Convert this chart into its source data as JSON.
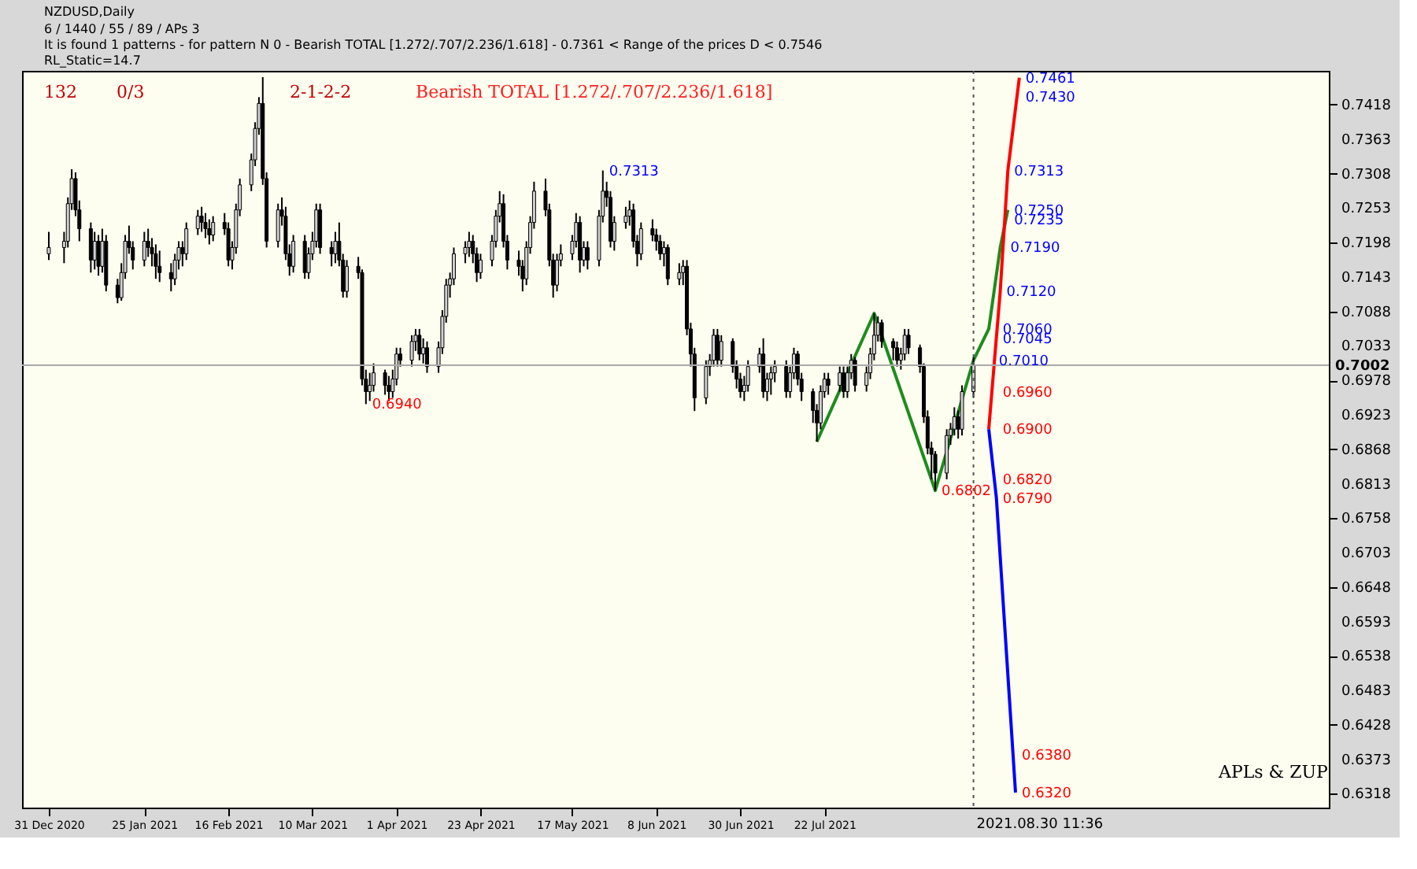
{
  "chart_data": {
    "type": "candlestick",
    "title": "NZDUSD,Daily",
    "x": [
      "2020-12-31",
      "2021-01-04",
      "2021-01-05",
      "2021-01-06",
      "2021-01-07",
      "2021-01-08",
      "2021-01-11",
      "2021-01-12",
      "2021-01-13",
      "2021-01-14",
      "2021-01-15",
      "2021-01-18",
      "2021-01-19",
      "2021-01-20",
      "2021-01-21",
      "2021-01-22",
      "2021-01-25",
      "2021-01-26",
      "2021-01-27",
      "2021-01-28",
      "2021-01-29",
      "2021-02-01",
      "2021-02-02",
      "2021-02-03",
      "2021-02-04",
      "2021-02-05",
      "2021-02-08",
      "2021-02-09",
      "2021-02-10",
      "2021-02-11",
      "2021-02-12",
      "2021-02-15",
      "2021-02-16",
      "2021-02-17",
      "2021-02-18",
      "2021-02-19",
      "2021-02-22",
      "2021-02-23",
      "2021-02-24",
      "2021-02-25",
      "2021-02-26",
      "2021-03-01",
      "2021-03-02",
      "2021-03-03",
      "2021-03-04",
      "2021-03-05",
      "2021-03-08",
      "2021-03-09",
      "2021-03-10",
      "2021-03-11",
      "2021-03-12",
      "2021-03-15",
      "2021-03-16",
      "2021-03-17",
      "2021-03-18",
      "2021-03-19",
      "2021-03-22",
      "2021-03-23",
      "2021-03-24",
      "2021-03-25",
      "2021-03-26",
      "2021-03-29",
      "2021-03-30",
      "2021-03-31",
      "2021-04-01",
      "2021-04-02",
      "2021-04-05",
      "2021-04-06",
      "2021-04-07",
      "2021-04-08",
      "2021-04-09",
      "2021-04-12",
      "2021-04-13",
      "2021-04-14",
      "2021-04-15",
      "2021-04-16",
      "2021-04-19",
      "2021-04-20",
      "2021-04-21",
      "2021-04-22",
      "2021-04-23",
      "2021-04-26",
      "2021-04-27",
      "2021-04-28",
      "2021-04-29",
      "2021-04-30",
      "2021-05-03",
      "2021-05-04",
      "2021-05-05",
      "2021-05-06",
      "2021-05-07",
      "2021-05-10",
      "2021-05-11",
      "2021-05-12",
      "2021-05-13",
      "2021-05-14",
      "2021-05-17",
      "2021-05-18",
      "2021-05-19",
      "2021-05-20",
      "2021-05-21",
      "2021-05-24",
      "2021-05-25",
      "2021-05-26",
      "2021-05-27",
      "2021-05-28",
      "2021-05-31",
      "2021-06-01",
      "2021-06-02",
      "2021-06-03",
      "2021-06-04",
      "2021-06-07",
      "2021-06-08",
      "2021-06-09",
      "2021-06-10",
      "2021-06-11",
      "2021-06-14",
      "2021-06-15",
      "2021-06-16",
      "2021-06-17",
      "2021-06-18",
      "2021-06-21",
      "2021-06-22",
      "2021-06-23",
      "2021-06-24",
      "2021-06-25",
      "2021-06-28",
      "2021-06-29",
      "2021-06-30",
      "2021-07-01",
      "2021-07-02",
      "2021-07-05",
      "2021-07-06",
      "2021-07-07",
      "2021-07-08",
      "2021-07-09",
      "2021-07-12",
      "2021-07-13",
      "2021-07-14",
      "2021-07-15",
      "2021-07-16",
      "2021-07-19",
      "2021-07-20",
      "2021-07-21",
      "2021-07-22",
      "2021-07-23",
      "2021-07-26",
      "2021-07-27",
      "2021-07-28",
      "2021-07-29",
      "2021-07-30",
      "2021-08-02",
      "2021-08-03",
      "2021-08-04",
      "2021-08-05",
      "2021-08-06",
      "2021-08-09",
      "2021-08-10",
      "2021-08-11",
      "2021-08-12",
      "2021-08-13",
      "2021-08-16",
      "2021-08-17",
      "2021-08-18",
      "2021-08-19",
      "2021-08-20",
      "2021-08-23",
      "2021-08-24",
      "2021-08-25",
      "2021-08-26",
      "2021-08-27",
      "2021-08-30"
    ],
    "ohlc": [
      [
        0.718,
        0.7215,
        0.717,
        0.719
      ],
      [
        0.719,
        0.7215,
        0.7165,
        0.72
      ],
      [
        0.72,
        0.727,
        0.719,
        0.726
      ],
      [
        0.726,
        0.7315,
        0.725,
        0.73
      ],
      [
        0.73,
        0.731,
        0.724,
        0.725
      ],
      [
        0.725,
        0.7265,
        0.72,
        0.722
      ],
      [
        0.722,
        0.723,
        0.715,
        0.717
      ],
      [
        0.717,
        0.7215,
        0.7155,
        0.72
      ],
      [
        0.72,
        0.721,
        0.7145,
        0.716
      ],
      [
        0.716,
        0.722,
        0.715,
        0.72
      ],
      [
        0.72,
        0.721,
        0.712,
        0.713
      ],
      [
        0.713,
        0.714,
        0.7101,
        0.711
      ],
      [
        0.711,
        0.7165,
        0.7105,
        0.715
      ],
      [
        0.715,
        0.721,
        0.714,
        0.72
      ],
      [
        0.72,
        0.7225,
        0.718,
        0.719
      ],
      [
        0.719,
        0.72,
        0.7155,
        0.717
      ],
      [
        0.717,
        0.7215,
        0.716,
        0.72
      ],
      [
        0.72,
        0.722,
        0.7175,
        0.719
      ],
      [
        0.719,
        0.7205,
        0.716,
        0.718
      ],
      [
        0.718,
        0.7195,
        0.714,
        0.716
      ],
      [
        0.716,
        0.7185,
        0.7135,
        0.715
      ],
      [
        0.715,
        0.7165,
        0.712,
        0.714
      ],
      [
        0.714,
        0.718,
        0.713,
        0.717
      ],
      [
        0.717,
        0.72,
        0.7155,
        0.719
      ],
      [
        0.719,
        0.72,
        0.716,
        0.718
      ],
      [
        0.718,
        0.723,
        0.717,
        0.722
      ],
      [
        0.722,
        0.725,
        0.721,
        0.724
      ],
      [
        0.724,
        0.7255,
        0.7215,
        0.723
      ],
      [
        0.723,
        0.7245,
        0.7205,
        0.722
      ],
      [
        0.722,
        0.7235,
        0.7195,
        0.721
      ],
      [
        0.721,
        0.724,
        0.72,
        0.723
      ],
      [
        0.723,
        0.7245,
        0.721,
        0.722
      ],
      [
        0.722,
        0.723,
        0.716,
        0.717
      ],
      [
        0.717,
        0.72,
        0.7155,
        0.719
      ],
      [
        0.719,
        0.726,
        0.718,
        0.725
      ],
      [
        0.725,
        0.73,
        0.724,
        0.729
      ],
      [
        0.729,
        0.734,
        0.728,
        0.733
      ],
      [
        0.733,
        0.739,
        0.732,
        0.738
      ],
      [
        0.738,
        0.743,
        0.737,
        0.742
      ],
      [
        0.742,
        0.7462,
        0.729,
        0.73
      ],
      [
        0.73,
        0.731,
        0.719,
        0.72
      ],
      [
        0.72,
        0.726,
        0.719,
        0.725
      ],
      [
        0.725,
        0.727,
        0.7225,
        0.724
      ],
      [
        0.724,
        0.7255,
        0.717,
        0.718
      ],
      [
        0.718,
        0.7195,
        0.7145,
        0.716
      ],
      [
        0.716,
        0.721,
        0.715,
        0.72
      ],
      [
        0.72,
        0.721,
        0.714,
        0.715
      ],
      [
        0.715,
        0.719,
        0.714,
        0.718
      ],
      [
        0.718,
        0.7215,
        0.717,
        0.72
      ],
      [
        0.72,
        0.726,
        0.719,
        0.725
      ],
      [
        0.725,
        0.726,
        0.718,
        0.719
      ],
      [
        0.719,
        0.72,
        0.716,
        0.718
      ],
      [
        0.718,
        0.7215,
        0.7165,
        0.72
      ],
      [
        0.72,
        0.723,
        0.716,
        0.717
      ],
      [
        0.717,
        0.718,
        0.711,
        0.712
      ],
      [
        0.712,
        0.717,
        0.711,
        0.716
      ],
      [
        0.716,
        0.7175,
        0.714,
        0.715
      ],
      [
        0.715,
        0.7155,
        0.697,
        0.698
      ],
      [
        0.698,
        0.6995,
        0.694,
        0.696
      ],
      [
        0.696,
        0.699,
        0.6945,
        0.697
      ],
      [
        0.697,
        0.7005,
        0.696,
        0.699
      ],
      [
        0.699,
        0.6995,
        0.6955,
        0.697
      ],
      [
        0.697,
        0.6985,
        0.6945,
        0.696
      ],
      [
        0.696,
        0.6995,
        0.695,
        0.698
      ],
      [
        0.698,
        0.703,
        0.697,
        0.702
      ],
      [
        0.702,
        0.703,
        0.7,
        0.701
      ],
      [
        0.701,
        0.705,
        0.7,
        0.704
      ],
      [
        0.704,
        0.706,
        0.7025,
        0.705
      ],
      [
        0.705,
        0.706,
        0.701,
        0.702
      ],
      [
        0.702,
        0.7045,
        0.7005,
        0.703
      ],
      [
        0.703,
        0.704,
        0.699,
        0.7
      ],
      [
        0.7,
        0.704,
        0.699,
        0.703
      ],
      [
        0.703,
        0.709,
        0.702,
        0.708
      ],
      [
        0.708,
        0.714,
        0.707,
        0.713
      ],
      [
        0.713,
        0.715,
        0.711,
        0.714
      ],
      [
        0.714,
        0.719,
        0.713,
        0.718
      ],
      [
        0.718,
        0.72,
        0.7165,
        0.719
      ],
      [
        0.719,
        0.7215,
        0.7175,
        0.72
      ],
      [
        0.72,
        0.721,
        0.7165,
        0.718
      ],
      [
        0.718,
        0.719,
        0.7135,
        0.715
      ],
      [
        0.715,
        0.718,
        0.714,
        0.717
      ],
      [
        0.717,
        0.721,
        0.716,
        0.72
      ],
      [
        0.72,
        0.725,
        0.719,
        0.724
      ],
      [
        0.724,
        0.728,
        0.723,
        0.726
      ],
      [
        0.726,
        0.7275,
        0.719,
        0.72
      ],
      [
        0.72,
        0.721,
        0.7155,
        0.717
      ],
      [
        0.717,
        0.7185,
        0.7145,
        0.716
      ],
      [
        0.716,
        0.717,
        0.712,
        0.714
      ],
      [
        0.714,
        0.72,
        0.713,
        0.719
      ],
      [
        0.719,
        0.724,
        0.718,
        0.723
      ],
      [
        0.723,
        0.7295,
        0.722,
        0.728
      ],
      [
        0.728,
        0.73,
        0.724,
        0.725
      ],
      [
        0.725,
        0.726,
        0.716,
        0.717
      ],
      [
        0.717,
        0.718,
        0.711,
        0.713
      ],
      [
        0.713,
        0.718,
        0.712,
        0.717
      ],
      [
        0.717,
        0.7195,
        0.716,
        0.718
      ],
      [
        0.718,
        0.721,
        0.717,
        0.72
      ],
      [
        0.72,
        0.7245,
        0.719,
        0.723
      ],
      [
        0.723,
        0.724,
        0.715,
        0.717
      ],
      [
        0.717,
        0.72,
        0.716,
        0.719
      ],
      [
        0.719,
        0.72,
        0.7155,
        0.717
      ],
      [
        0.717,
        0.725,
        0.716,
        0.724
      ],
      [
        0.724,
        0.7313,
        0.723,
        0.728
      ],
      [
        0.728,
        0.7295,
        0.7255,
        0.727
      ],
      [
        0.727,
        0.728,
        0.719,
        0.72
      ],
      [
        0.72,
        0.724,
        0.7185,
        0.723
      ],
      [
        0.723,
        0.7255,
        0.722,
        0.724
      ],
      [
        0.724,
        0.7265,
        0.7225,
        0.725
      ],
      [
        0.725,
        0.726,
        0.719,
        0.72
      ],
      [
        0.72,
        0.721,
        0.716,
        0.718
      ],
      [
        0.718,
        0.723,
        0.717,
        0.722
      ],
      [
        0.722,
        0.7235,
        0.72,
        0.721
      ],
      [
        0.721,
        0.722,
        0.7185,
        0.72
      ],
      [
        0.72,
        0.721,
        0.717,
        0.718
      ],
      [
        0.718,
        0.72,
        0.716,
        0.719
      ],
      [
        0.719,
        0.7195,
        0.713,
        0.714
      ],
      [
        0.714,
        0.7165,
        0.713,
        0.715
      ],
      [
        0.715,
        0.717,
        0.713,
        0.716
      ],
      [
        0.716,
        0.717,
        0.705,
        0.706
      ],
      [
        0.706,
        0.707,
        0.7,
        0.702
      ],
      [
        0.702,
        0.703,
        0.6929,
        0.695
      ],
      [
        0.695,
        0.701,
        0.694,
        0.7
      ],
      [
        0.7,
        0.702,
        0.6985,
        0.701
      ],
      [
        0.701,
        0.706,
        0.7,
        0.705
      ],
      [
        0.705,
        0.706,
        0.7,
        0.701
      ],
      [
        0.701,
        0.705,
        0.7,
        0.704
      ],
      [
        0.704,
        0.7045,
        0.699,
        0.7
      ],
      [
        0.7,
        0.701,
        0.6965,
        0.698
      ],
      [
        0.698,
        0.699,
        0.695,
        0.696
      ],
      [
        0.696,
        0.6985,
        0.6945,
        0.697
      ],
      [
        0.697,
        0.701,
        0.696,
        0.7
      ],
      [
        0.7,
        0.703,
        0.699,
        0.702
      ],
      [
        0.702,
        0.7045,
        0.695,
        0.696
      ],
      [
        0.696,
        0.699,
        0.6945,
        0.698
      ],
      [
        0.698,
        0.7,
        0.6955,
        0.699
      ],
      [
        0.699,
        0.701,
        0.6975,
        0.7
      ],
      [
        0.7,
        0.701,
        0.695,
        0.696
      ],
      [
        0.696,
        0.7,
        0.695,
        0.699
      ],
      [
        0.699,
        0.703,
        0.698,
        0.702
      ],
      [
        0.702,
        0.7025,
        0.697,
        0.698
      ],
      [
        0.698,
        0.699,
        0.6945,
        0.696
      ],
      [
        0.696,
        0.6965,
        0.691,
        0.693
      ],
      [
        0.693,
        0.694,
        0.688,
        0.691
      ],
      [
        0.691,
        0.697,
        0.69,
        0.696
      ],
      [
        0.696,
        0.699,
        0.695,
        0.698
      ],
      [
        0.698,
        0.699,
        0.6955,
        0.697
      ],
      [
        0.697,
        0.7,
        0.696,
        0.699
      ],
      [
        0.699,
        0.7,
        0.695,
        0.696
      ],
      [
        0.696,
        0.7,
        0.695,
        0.699
      ],
      [
        0.699,
        0.702,
        0.698,
        0.701
      ],
      [
        0.701,
        0.7015,
        0.696,
        0.697
      ],
      [
        0.697,
        0.7,
        0.696,
        0.699
      ],
      [
        0.699,
        0.703,
        0.698,
        0.702
      ],
      [
        0.702,
        0.7085,
        0.701,
        0.705
      ],
      [
        0.705,
        0.708,
        0.704,
        0.707
      ],
      [
        0.707,
        0.7075,
        0.703,
        0.704
      ],
      [
        0.704,
        0.7045,
        0.701,
        0.703
      ],
      [
        0.703,
        0.704,
        0.7,
        0.701
      ],
      [
        0.701,
        0.703,
        0.6995,
        0.702
      ],
      [
        0.702,
        0.706,
        0.701,
        0.705
      ],
      [
        0.705,
        0.706,
        0.702,
        0.703
      ],
      [
        0.703,
        0.7035,
        0.699,
        0.7
      ],
      [
        0.7,
        0.7005,
        0.691,
        0.692
      ],
      [
        0.692,
        0.693,
        0.686,
        0.687
      ],
      [
        0.687,
        0.688,
        0.682,
        0.686
      ],
      [
        0.686,
        0.6865,
        0.6802,
        0.683
      ],
      [
        0.683,
        0.69,
        0.682,
        0.689
      ],
      [
        0.689,
        0.691,
        0.6875,
        0.69
      ],
      [
        0.69,
        0.6935,
        0.689,
        0.692
      ],
      [
        0.692,
        0.693,
        0.6885,
        0.69
      ],
      [
        0.69,
        0.697,
        0.689,
        0.696
      ],
      [
        0.696,
        0.7015,
        0.695,
        0.7002
      ]
    ],
    "series": [
      {
        "type": "line",
        "color": "#1e8c1e",
        "x": [
          "2021-07-20",
          "2021-08-04",
          "2021-08-20",
          "2021-08-30",
          "2021-09-03",
          "2021-09-06",
          "2021-09-08"
        ],
        "values": [
          0.688,
          0.7085,
          0.6802,
          0.701,
          0.706,
          0.719,
          0.725
        ]
      },
      {
        "type": "line",
        "color": "#ff0000",
        "x": [
          "2021-09-03",
          "2021-09-06",
          "2021-09-08",
          "2021-09-11"
        ],
        "values": [
          0.69,
          0.712,
          0.7313,
          0.7461
        ]
      },
      {
        "type": "line",
        "color": "#0000ff",
        "x": [
          "2021-09-03",
          "2021-09-05",
          "2021-09-10"
        ],
        "values": [
          0.69,
          0.679,
          0.632
        ]
      }
    ],
    "xlim": [
      "2020-12-24",
      "2021-12-01"
    ],
    "ylim": [
      0.6296,
      0.7472
    ],
    "xticks": [
      {
        "value": "2020-12-31",
        "label": "31 Dec 2020"
      },
      {
        "value": "2021-01-25",
        "label": "25 Jan 2021"
      },
      {
        "value": "2021-02-16",
        "label": "16 Feb 2021"
      },
      {
        "value": "2021-03-10",
        "label": "10 Mar 2021"
      },
      {
        "value": "2021-04-01",
        "label": "1 Apr 2021"
      },
      {
        "value": "2021-04-23",
        "label": "23 Apr 2021"
      },
      {
        "value": "2021-05-17",
        "label": "17 May 2021"
      },
      {
        "value": "2021-06-08",
        "label": "8 Jun 2021"
      },
      {
        "value": "2021-06-30",
        "label": "30 Jun 2021"
      },
      {
        "value": "2021-07-22",
        "label": "22 Jul 2021"
      }
    ],
    "yticks": [
      0.6318,
      0.6373,
      0.6428,
      0.6483,
      0.6538,
      0.6593,
      0.6648,
      0.6703,
      0.6758,
      0.6813,
      0.6868,
      0.6923,
      0.6978,
      0.7033,
      0.7088,
      0.7143,
      0.7198,
      0.7253,
      0.7308,
      0.7363,
      0.7418
    ],
    "ref_lines": [
      {
        "axis": "y",
        "value": 0.7002,
        "label": "0.7002",
        "color": "#aaaaaa",
        "line_style": "solid"
      },
      {
        "axis": "x",
        "value": "2021-08-30",
        "label": "2021.08.30 11:36",
        "color": "#555555",
        "line_style": "dotted"
      }
    ],
    "annotations": [
      "6 / 1440 / 55 / 89 / APs 3",
      "It is found 1 patterns  -  for pattern N 0 - Bearish TOTAL [1.272/.707/2.236/1.618] - 0.7361 < Range of the prices D < 0.7546",
      "RL_Static=14.7",
      "132",
      "0/3",
      "2-1-2-2",
      "Bearish TOTAL [1.272/.707/2.236/1.618]",
      "APLs & ZUP",
      {
        "text": "0.7461",
        "x": "2021-09-11",
        "y": 0.7461
      },
      {
        "text": "0.7430",
        "x": "2021-09-11",
        "y": 0.743
      },
      {
        "text": "0.7313",
        "x": "2021-09-08",
        "y": 0.7313
      },
      {
        "text": "0.7250",
        "x": "2021-09-08",
        "y": 0.725
      },
      {
        "text": "0.7235",
        "x": "2021-09-08",
        "y": 0.7235
      },
      {
        "text": "0.7190",
        "x": "2021-09-07",
        "y": 0.719
      },
      {
        "text": "0.7120",
        "x": "2021-09-06",
        "y": 0.712
      },
      {
        "text": "0.7060",
        "x": "2021-09-05",
        "y": 0.706
      },
      {
        "text": "0.7045",
        "x": "2021-09-05",
        "y": 0.7045
      },
      {
        "text": "0.7010",
        "x": "2021-09-04",
        "y": 0.701
      },
      {
        "text": "0.6960",
        "x": "2021-09-05",
        "y": 0.696
      },
      {
        "text": "0.6900",
        "x": "2021-09-05",
        "y": 0.69
      },
      {
        "text": "0.6820",
        "x": "2021-09-05",
        "y": 0.682
      },
      {
        "text": "0.6790",
        "x": "2021-09-05",
        "y": 0.679
      },
      {
        "text": "0.6380",
        "x": "2021-09-10",
        "y": 0.638
      },
      {
        "text": "0.6320",
        "x": "2021-09-10",
        "y": 0.632
      },
      {
        "text": "0.7313",
        "x": "2021-05-25",
        "y": 0.7313
      },
      {
        "text": "0.6940",
        "x": "2021-03-24",
        "y": 0.694
      },
      {
        "text": "0.6802",
        "x": "2021-08-20",
        "y": 0.6802
      }
    ],
    "grid": false,
    "marker": "none",
    "line_style": "solid"
  }
}
